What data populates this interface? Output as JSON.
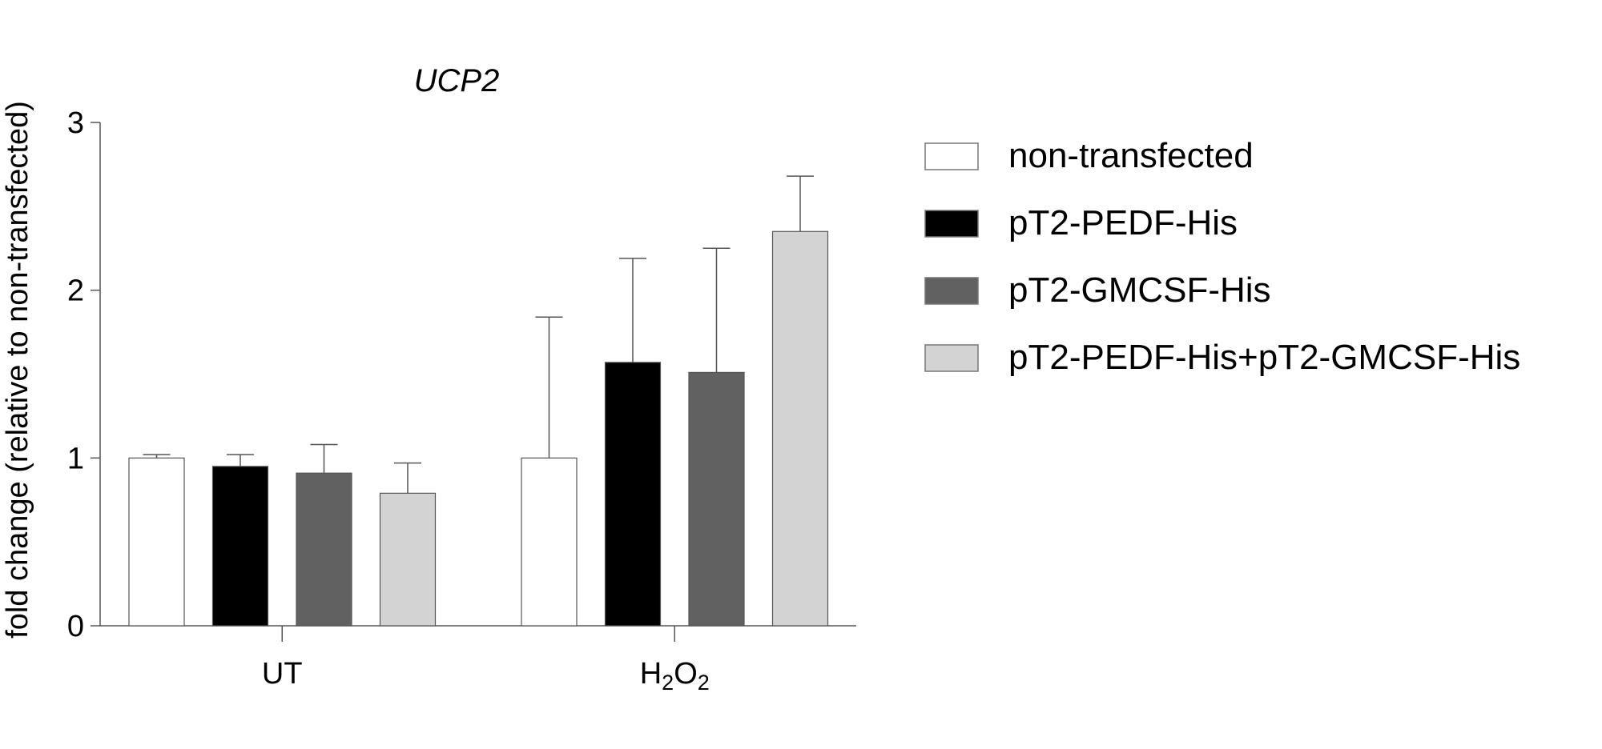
{
  "chart_data": {
    "type": "bar",
    "title": "UCP2",
    "xlabel": "",
    "ylabel": "fold change (relative to non-transfected)",
    "ylim": [
      0,
      3
    ],
    "yticks": [
      "0",
      "1",
      "2",
      "3"
    ],
    "categories": [
      "UT",
      "H2O2"
    ],
    "category_labels": [
      {
        "main": "UT",
        "parts": [
          {
            "t": "UT",
            "sub": false
          }
        ]
      },
      {
        "main": "H2O2",
        "parts": [
          {
            "t": "H",
            "sub": false
          },
          {
            "t": "2",
            "sub": true
          },
          {
            "t": "O",
            "sub": false
          },
          {
            "t": "2",
            "sub": true
          }
        ]
      }
    ],
    "series": [
      {
        "name": "non-transfected",
        "color": "#ffffff",
        "values": [
          1.0,
          1.0
        ],
        "error_upper": [
          1.02,
          1.84
        ]
      },
      {
        "name": "pT2-PEDF-His",
        "color": "#000000",
        "values": [
          0.95,
          1.57
        ],
        "error_upper": [
          1.02,
          2.19
        ]
      },
      {
        "name": "pT2-GMCSF-His",
        "color": "#616161",
        "values": [
          0.91,
          1.51
        ],
        "error_upper": [
          1.08,
          2.25
        ]
      },
      {
        "name": "pT2-PEDF-His+pT2-GMCSF-His",
        "color": "#d3d3d3",
        "values": [
          0.79,
          2.35
        ],
        "error_upper": [
          0.97,
          2.68
        ]
      }
    ],
    "legend": "right",
    "grid": false
  }
}
